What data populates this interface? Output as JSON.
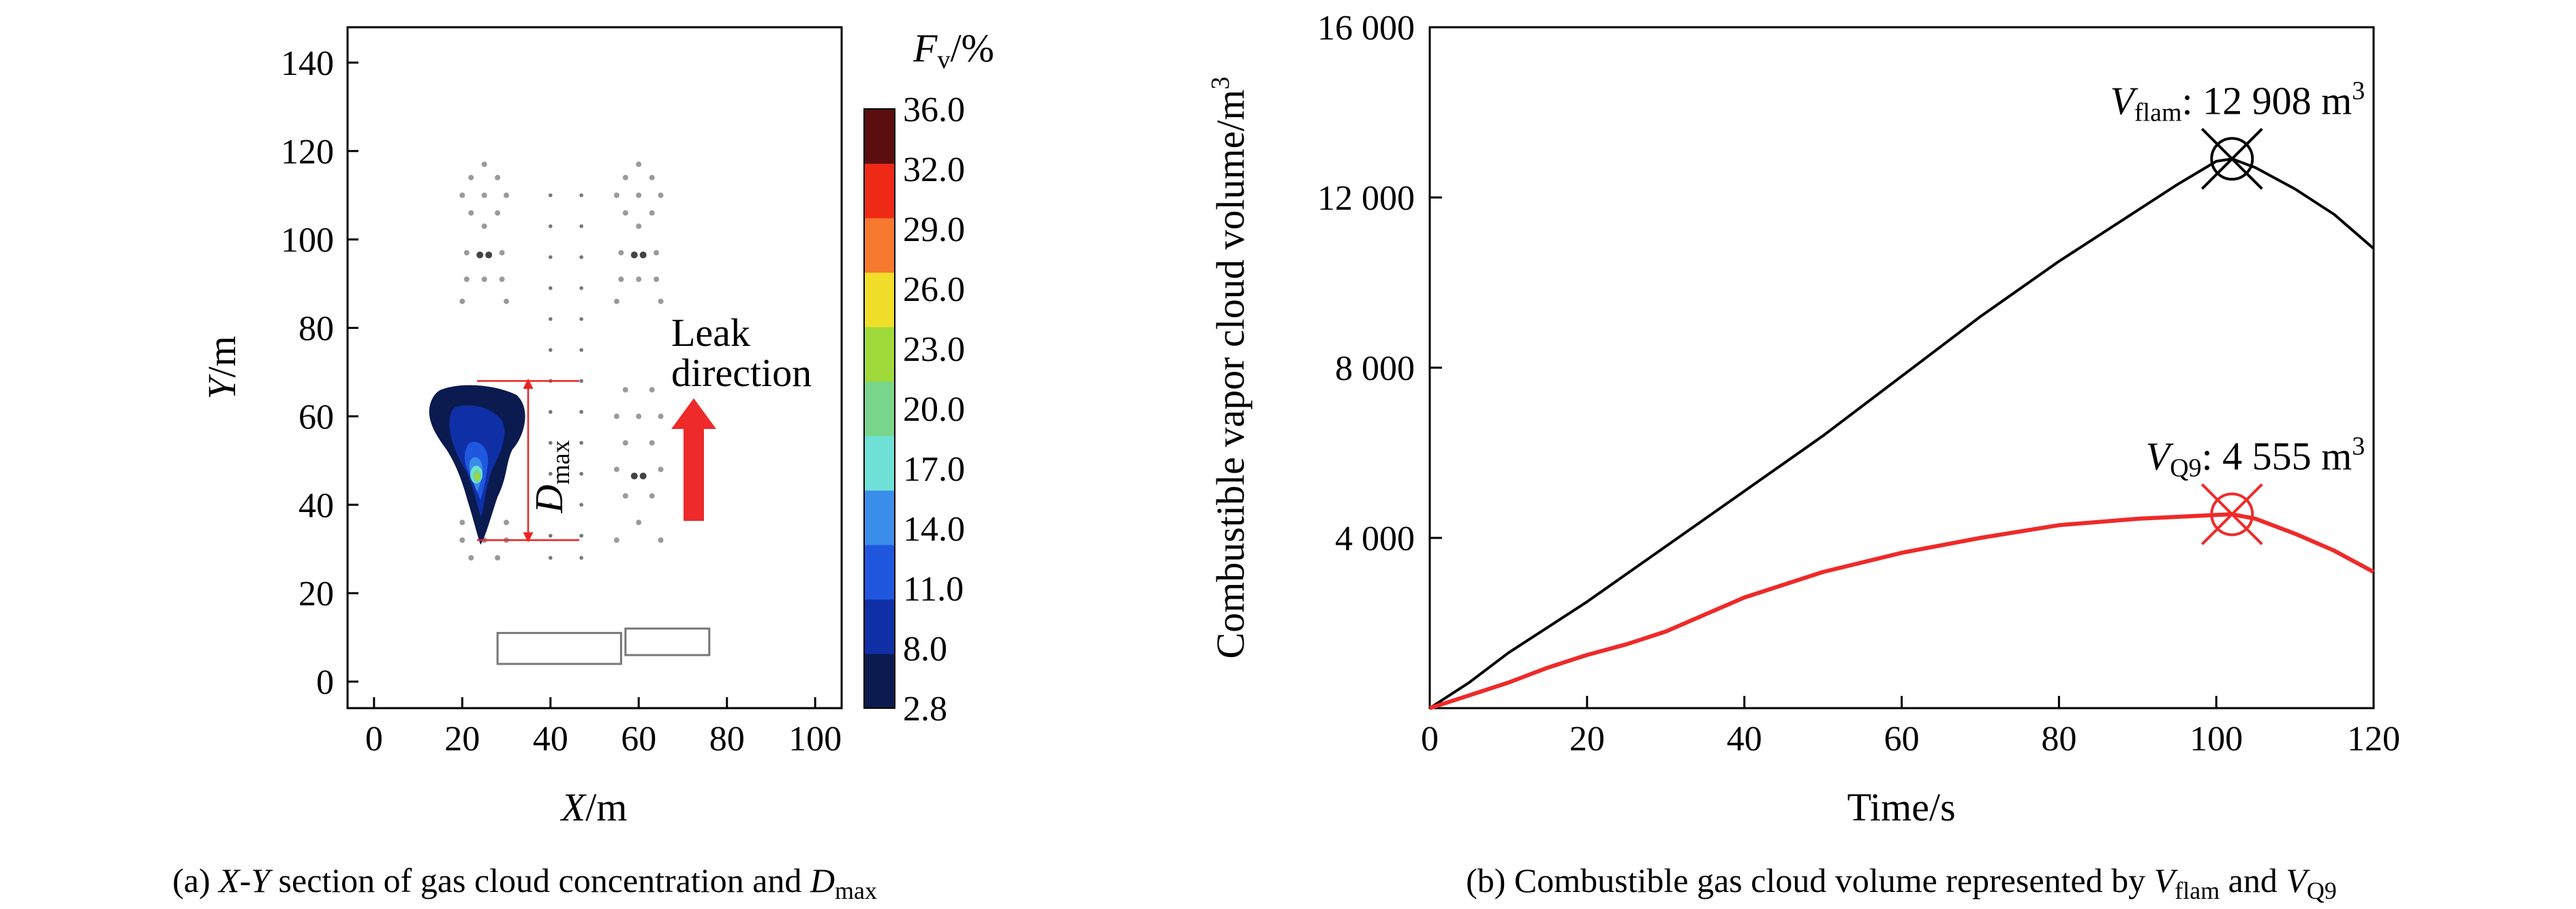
{
  "chart_data": [
    {
      "type": "contour",
      "caption": {
        "pre": "(a) ",
        "x": "X",
        "dash": "-",
        "y": "Y",
        "mid": " section of gas cloud concentration and ",
        "d": "D",
        "dsub": "max"
      },
      "xlabel": {
        "var": "X",
        "unit": "/m"
      },
      "ylabel": {
        "var": "Y",
        "unit": "/m"
      },
      "xlim": [
        -6,
        106
      ],
      "ylim": [
        -6,
        148
      ],
      "xticks": [
        0,
        20,
        40,
        60,
        80,
        100
      ],
      "yticks": [
        0,
        20,
        40,
        60,
        80,
        100,
        120,
        140
      ],
      "colorbar": {
        "title_var": "F",
        "title_sub": "v",
        "title_unit": "/%",
        "levels": [
          "2.8",
          "8.0",
          "11.0",
          "14.0",
          "17.0",
          "20.0",
          "23.0",
          "26.0",
          "29.0",
          "32.0",
          "36.0"
        ],
        "colors": [
          "#0b1a4f",
          "#0f2fa6",
          "#1f58df",
          "#3a8de8",
          "#6fe0d6",
          "#77d68b",
          "#9fd93a",
          "#f0de2a",
          "#f5792e",
          "#ee2a16",
          "#5a0e0e"
        ]
      },
      "dmax_label": {
        "d": "D",
        "sub": "max"
      },
      "dmax_y_range": [
        32,
        68
      ],
      "leak_label": [
        "Leak",
        "direction"
      ],
      "leak_color": "#ee2a2a",
      "equipment_blocks": [
        {
          "x0": 28,
          "x1": 56,
          "y0": 4,
          "y1": 11
        },
        {
          "x0": 57,
          "x1": 76,
          "y0": 6,
          "y1": 12
        }
      ]
    },
    {
      "type": "line",
      "caption": {
        "pre": "(b) Combustible gas cloud volume represented by ",
        "v1": "V",
        "v1sub": "flam",
        "and": " and ",
        "v2": "V",
        "v2sub": "Q9"
      },
      "xlabel": "Time/s",
      "ylabel": "Combustible vapor cloud volume/m",
      "ylabel_sup": "3",
      "xlim": [
        0,
        120
      ],
      "ylim": [
        0,
        16000
      ],
      "xticks": [
        "0",
        "20",
        "40",
        "60",
        "80",
        "100",
        "120"
      ],
      "yticks": [
        "4 000",
        "8 000",
        "12 000",
        "16 000"
      ],
      "series": [
        {
          "color": "#000000",
          "x": [
            0,
            5,
            10,
            20,
            30,
            40,
            50,
            60,
            70,
            80,
            90,
            95,
            100,
            102,
            105,
            110,
            115,
            120
          ],
          "y": [
            0,
            600,
            1300,
            2500,
            3800,
            5100,
            6400,
            7800,
            9200,
            10500,
            11700,
            12300,
            12850,
            12908,
            12700,
            12200,
            11600,
            10800
          ]
        },
        {
          "color": "#ee2a2a",
          "x": [
            0,
            5,
            10,
            15,
            20,
            25,
            30,
            40,
            50,
            60,
            70,
            80,
            90,
            100,
            102,
            105,
            110,
            115,
            120
          ],
          "y": [
            0,
            300,
            600,
            950,
            1250,
            1500,
            1800,
            2600,
            3200,
            3650,
            4000,
            4300,
            4450,
            4540,
            4555,
            4450,
            4100,
            3700,
            3200
          ]
        }
      ],
      "annotations": [
        {
          "var": "V",
          "sub": "flam",
          "text": ": 12 908 m",
          "sup": "3",
          "x": 102,
          "y": 12908,
          "color": "#000000"
        },
        {
          "var": "V",
          "sub": "Q9",
          "text": ": 4 555 m",
          "sup": "3",
          "x": 102,
          "y": 4555,
          "color": "#ee2a2a"
        }
      ]
    }
  ]
}
